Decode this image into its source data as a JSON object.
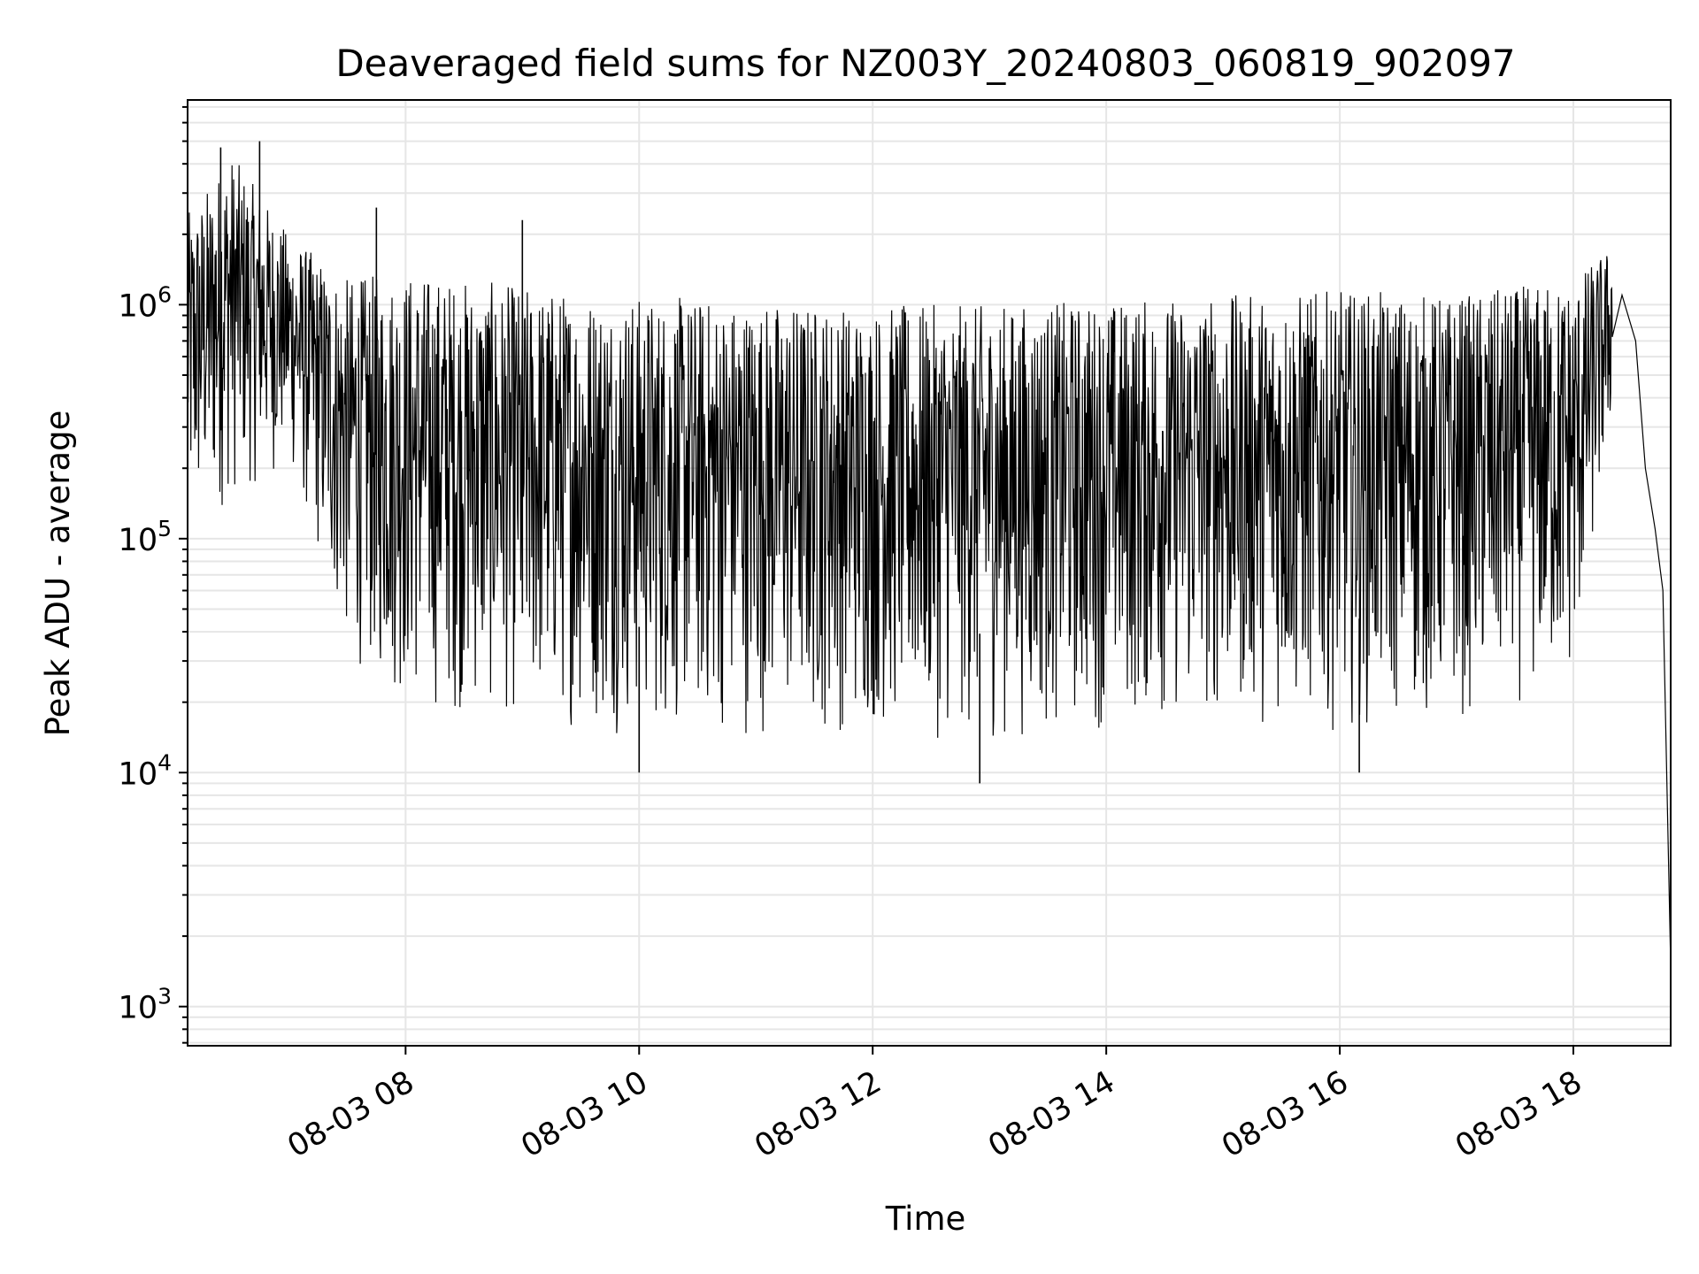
{
  "chart_data": {
    "type": "line",
    "title": "Deaveraged field sums for NZ003Y_20240803_060819_902097",
    "xlabel": "Time",
    "ylabel": "Peak ADU - average",
    "yscale": "log",
    "ylim": [
      680,
      7500000
    ],
    "xlim": [
      "08-03 06:08",
      "08-03 18:50"
    ],
    "grid": true,
    "line_color": "#000000",
    "x_ticks": [
      "08-03 08",
      "08-03 10",
      "08-03 12",
      "08-03 14",
      "08-03 16",
      "08-03 18"
    ],
    "y_ticks": [
      {
        "base": "10",
        "exp": "3",
        "value": 1000
      },
      {
        "base": "10",
        "exp": "4",
        "value": 10000
      },
      {
        "base": "10",
        "exp": "5",
        "value": 100000
      },
      {
        "base": "10",
        "exp": "6",
        "value": 1000000
      }
    ],
    "series": [
      {
        "points": [
          [
            "08-03 06:08",
            480000
          ],
          [
            "08-03 06:20",
            700000
          ],
          [
            "08-03 06:30",
            900000
          ],
          [
            "08-03 06:45",
            1200000
          ],
          [
            "08-03 07:00",
            800000
          ],
          [
            "08-03 07:15",
            200000
          ],
          [
            "08-03 07:30",
            120000
          ],
          [
            "08-03 07:45",
            90000
          ],
          [
            "08-03 08:00",
            70000
          ],
          [
            "08-03 08:30",
            50000
          ],
          [
            "08-03 09:00",
            45000
          ],
          [
            "08-03 10:00",
            42000
          ],
          [
            "08-03 11:00",
            40000
          ],
          [
            "08-03 12:00",
            40000
          ],
          [
            "08-03 13:00",
            40000
          ],
          [
            "08-03 14:00",
            42000
          ],
          [
            "08-03 15:00",
            42000
          ],
          [
            "08-03 16:00",
            45000
          ],
          [
            "08-03 17:00",
            45000
          ],
          [
            "08-03 18:00",
            50000
          ],
          [
            "08-03 18:15",
            500000
          ],
          [
            "08-03 18:25",
            1100000
          ],
          [
            "08-03 18:32",
            700000
          ],
          [
            "08-03 18:37",
            200000
          ],
          [
            "08-03 18:42",
            110000
          ],
          [
            "08-03 18:46",
            60000
          ],
          [
            "08-03 18:50",
            1500
          ]
        ],
        "envelope": [
          [
            "08-03 06:10",
            90000,
            2500000
          ],
          [
            "08-03 06:30",
            140000,
            4500000
          ],
          [
            "08-03 07:00",
            200000,
            2000000
          ],
          [
            "08-03 07:30",
            30000,
            1300000
          ],
          [
            "08-03 08:00",
            18000,
            1400000
          ],
          [
            "08-03 09:00",
            16000,
            1200000
          ],
          [
            "08-03 10:00",
            14000,
            1100000
          ],
          [
            "08-03 11:00",
            14000,
            1050000
          ],
          [
            "08-03 12:00",
            14000,
            1000000
          ],
          [
            "08-03 13:00",
            13000,
            1000000
          ],
          [
            "08-03 14:00",
            15000,
            1050000
          ],
          [
            "08-03 15:00",
            16000,
            1100000
          ],
          [
            "08-03 16:00",
            15000,
            1150000
          ],
          [
            "08-03 17:00",
            16000,
            1100000
          ],
          [
            "08-03 18:00",
            22000,
            1300000
          ],
          [
            "08-03 18:20",
            300000,
            1800000
          ]
        ],
        "spikes": [
          [
            "08-03 06:25",
            4700000
          ],
          [
            "08-03 06:45",
            5000000
          ],
          [
            "08-03 07:45",
            2600000
          ],
          [
            "08-03 09:00",
            2300000
          ],
          [
            "08-03 12:55",
            9000
          ],
          [
            "08-03 10:00",
            10000
          ],
          [
            "08-03 16:10",
            10000
          ]
        ]
      }
    ]
  }
}
